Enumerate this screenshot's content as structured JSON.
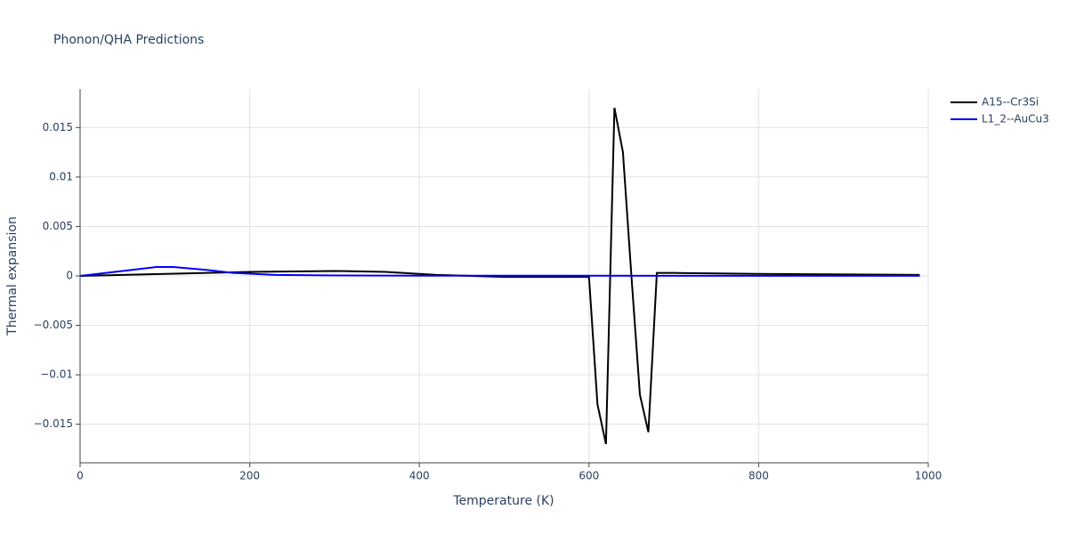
{
  "chart_data": {
    "type": "line",
    "title": "Phonon/QHA Predictions",
    "x_label": "Temperature (K)",
    "y_label": "Thermal expansion",
    "xlim": [
      0,
      1000
    ],
    "xticks": [
      0,
      200,
      400,
      600,
      800,
      1000
    ],
    "ylim": [
      -0.0189,
      0.0189
    ],
    "yticks": [
      {
        "value": -0.015,
        "label": "−0.015"
      },
      {
        "value": -0.01,
        "label": "−0.01"
      },
      {
        "value": -0.005,
        "label": "−0.005"
      },
      0,
      0.005,
      0.01,
      0.015
    ],
    "grid": true,
    "legend": "outside-right",
    "series": [
      {
        "name": "A15--Cr3Si",
        "color": "#000000",
        "x": [
          0,
          100,
          200,
          300,
          360,
          420,
          500,
          600,
          610,
          620,
          630,
          640,
          650,
          660,
          670,
          680,
          700,
          800,
          990
        ],
        "values": [
          0,
          0.0002,
          0.0004,
          0.0005,
          0.0004,
          0.0001,
          -0.0001,
          -0.0001,
          -0.013,
          -0.017,
          0.017,
          0.0125,
          0,
          -0.012,
          -0.0158,
          0.0003,
          0.0003,
          0.0002,
          0.0001
        ]
      },
      {
        "name": "L1_2--AuCu3",
        "color": "#0000ff",
        "x": [
          0,
          50,
          90,
          110,
          150,
          180,
          230,
          300,
          400,
          990
        ],
        "values": [
          0,
          0.0005,
          0.0009,
          0.0009,
          0.0006,
          0.0003,
          0.0001,
          5e-05,
          2e-05,
          1e-05
        ]
      }
    ]
  }
}
